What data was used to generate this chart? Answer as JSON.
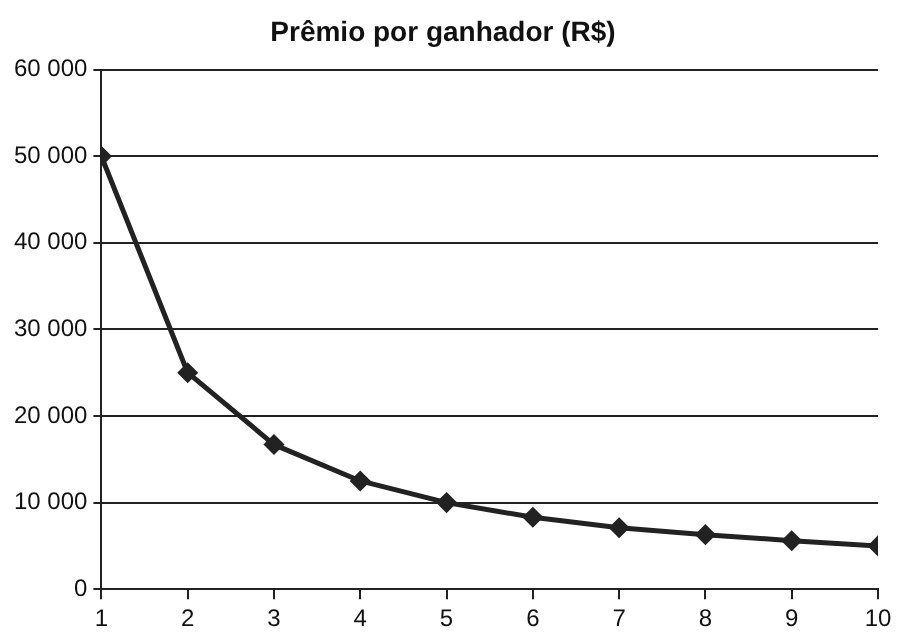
{
  "chart_data": {
    "type": "line",
    "title": "Prêmio por ganhador (R$)",
    "x": [
      1,
      2,
      3,
      4,
      5,
      6,
      7,
      8,
      9,
      10
    ],
    "series": [
      {
        "color": "#222222",
        "values": [
          50000,
          25000,
          16700,
          12500,
          10000,
          8300,
          7100,
          6300,
          5600,
          5000
        ]
      }
    ],
    "xlim": [
      1,
      10
    ],
    "xticks": [
      1,
      2,
      3,
      4,
      5,
      6,
      7,
      8,
      9,
      10
    ],
    "ylim": [
      0,
      60000
    ],
    "yticks": [
      0,
      {
        "value": 10000,
        "label": "10 000"
      },
      {
        "value": 20000,
        "label": "20 000"
      },
      {
        "value": 30000,
        "label": "30 000"
      },
      {
        "value": 40000,
        "label": "40 000"
      },
      {
        "value": 50000,
        "label": "50 000"
      },
      {
        "value": 60000,
        "label": "60 000"
      }
    ],
    "grid": "y",
    "marker": "diamond",
    "line_style": "solid",
    "legend": false
  }
}
